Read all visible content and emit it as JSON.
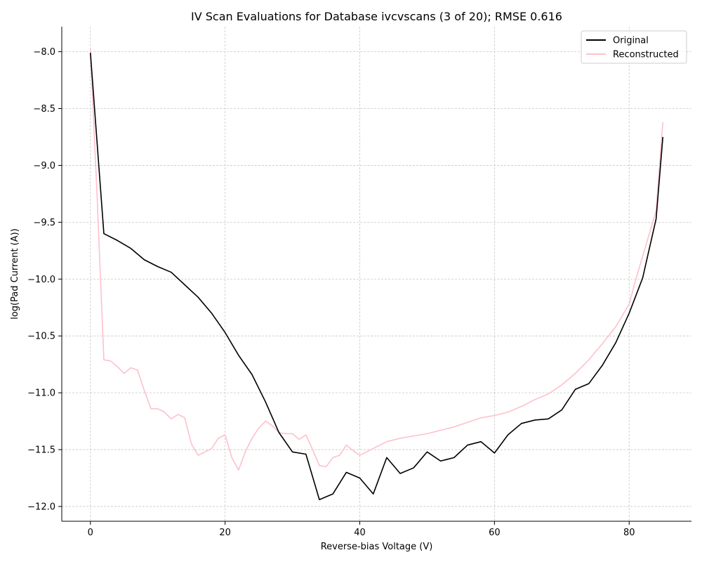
{
  "chart_data": {
    "type": "line",
    "title": "IV Scan Evaluations for Database ivcvscans (3 of 20); RMSE 0.616",
    "xlabel": "Reverse-bias Voltage (V)",
    "ylabel": "log(Pad Current (A))",
    "xlim": [
      -4.25,
      89.25
    ],
    "ylim": [
      -12.13,
      -7.78
    ],
    "xticks": [
      0,
      20,
      40,
      60,
      80
    ],
    "xtick_labels": [
      "0",
      "20",
      "40",
      "60",
      "80"
    ],
    "yticks": [
      -8.0,
      -8.5,
      -9.0,
      -9.5,
      -10.0,
      -10.5,
      -11.0,
      -11.5,
      -12.0
    ],
    "ytick_labels": [
      "−8.0",
      "−8.5",
      "−9.0",
      "−9.5",
      "−10.0",
      "−10.5",
      "−11.0",
      "−11.5",
      "−12.0"
    ],
    "grid": true,
    "legend_position": "top-right",
    "series": [
      {
        "name": "Original",
        "color": "#000000",
        "x": [
          0,
          2,
          4,
          6,
          8,
          10,
          12,
          14,
          16,
          18,
          20,
          22,
          24,
          26,
          28,
          30,
          32,
          34,
          36,
          38,
          40,
          42,
          44,
          46,
          48,
          50,
          52,
          54,
          56,
          58,
          60,
          62,
          64,
          66,
          68,
          70,
          72,
          74,
          76,
          78,
          80,
          82,
          84,
          85
        ],
        "y": [
          -8.01,
          -9.6,
          -9.66,
          -9.73,
          -9.83,
          -9.89,
          -9.94,
          -10.05,
          -10.16,
          -10.3,
          -10.47,
          -10.67,
          -10.84,
          -11.08,
          -11.35,
          -11.52,
          -11.54,
          -11.94,
          -11.89,
          -11.7,
          -11.75,
          -11.89,
          -11.57,
          -11.71,
          -11.66,
          -11.52,
          -11.6,
          -11.57,
          -11.46,
          -11.43,
          -11.53,
          -11.37,
          -11.27,
          -11.24,
          -11.23,
          -11.15,
          -10.97,
          -10.92,
          -10.76,
          -10.56,
          -10.3,
          -9.99,
          -9.47,
          -8.75
        ]
      },
      {
        "name": "Reconstructed",
        "color": "#ffc0cb",
        "x": [
          0,
          1,
          2,
          3,
          4,
          5,
          6,
          7,
          8,
          9,
          10,
          11,
          12,
          13,
          14,
          15,
          16,
          17,
          18,
          19,
          20,
          21,
          22,
          23,
          24,
          25,
          26,
          27,
          28,
          29,
          30,
          31,
          32,
          33,
          34,
          35,
          36,
          37,
          38,
          39,
          40,
          42,
          44,
          46,
          48,
          50,
          52,
          54,
          56,
          58,
          60,
          62,
          64,
          66,
          68,
          70,
          72,
          74,
          76,
          78,
          80,
          81,
          82,
          83,
          84,
          85
        ],
        "y": [
          -7.97,
          -9.28,
          -10.71,
          -10.72,
          -10.77,
          -10.83,
          -10.78,
          -10.8,
          -10.98,
          -11.14,
          -11.14,
          -11.17,
          -11.23,
          -11.19,
          -11.22,
          -11.45,
          -11.55,
          -11.52,
          -11.49,
          -11.4,
          -11.37,
          -11.57,
          -11.68,
          -11.52,
          -11.4,
          -11.31,
          -11.25,
          -11.29,
          -11.35,
          -11.36,
          -11.36,
          -11.41,
          -11.37,
          -11.5,
          -11.64,
          -11.65,
          -11.57,
          -11.55,
          -11.46,
          -11.51,
          -11.55,
          -11.49,
          -11.43,
          -11.4,
          -11.38,
          -11.36,
          -11.33,
          -11.3,
          -11.26,
          -11.22,
          -11.2,
          -11.17,
          -11.12,
          -11.06,
          -11.01,
          -10.93,
          -10.83,
          -10.71,
          -10.57,
          -10.42,
          -10.22,
          -10.0,
          -9.8,
          -9.6,
          -9.4,
          -8.62
        ]
      }
    ]
  }
}
